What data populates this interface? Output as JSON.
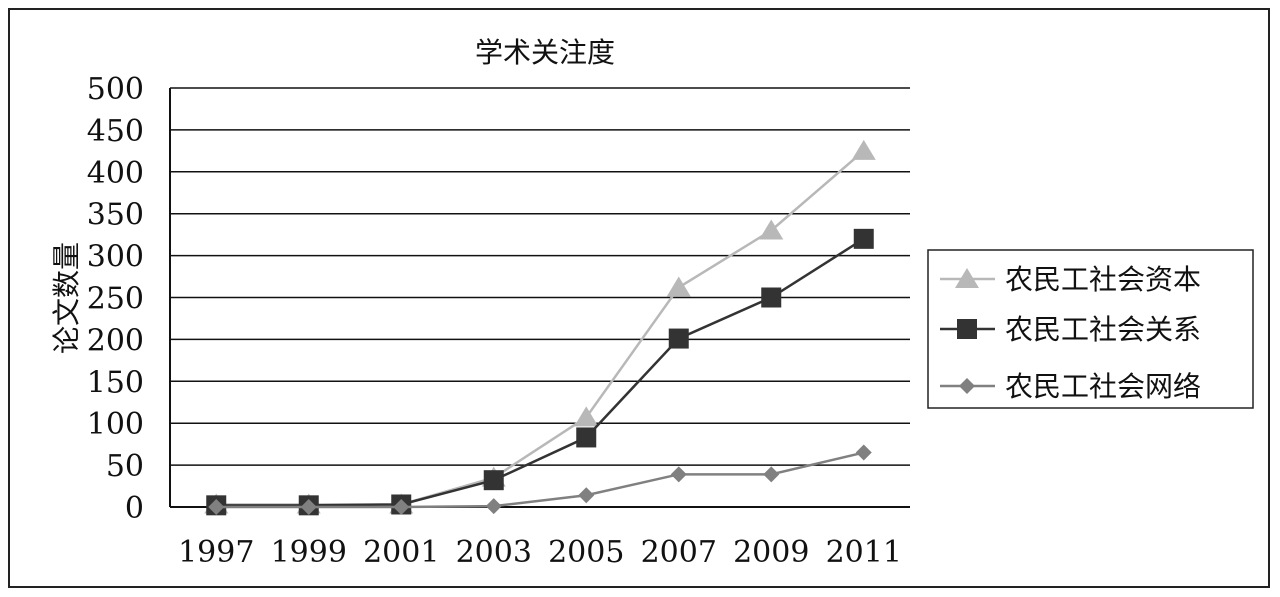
{
  "chart_data": {
    "type": "line",
    "title": "学术关注度",
    "ylabel": "论文数量",
    "xlabel": "",
    "categories": [
      "1997",
      "1999",
      "2001",
      "2003",
      "2005",
      "2007",
      "2009",
      "2011"
    ],
    "ylim": [
      0,
      500
    ],
    "yticks": [
      0,
      50,
      100,
      150,
      200,
      250,
      300,
      350,
      400,
      450,
      500
    ],
    "grid": true,
    "legend_position": "right",
    "series": [
      {
        "name": "农民工社会资本",
        "marker": "triangle",
        "color": "#b8b8b8",
        "values": [
          3,
          3,
          3,
          35,
          107,
          262,
          330,
          425
        ]
      },
      {
        "name": "农民工社会关系",
        "marker": "square",
        "color": "#333333",
        "values": [
          2,
          2,
          3,
          32,
          83,
          201,
          250,
          320
        ]
      },
      {
        "name": "农民工社会网络",
        "marker": "diamond",
        "color": "#808080",
        "values": [
          0,
          0,
          0,
          1,
          14,
          39,
          39,
          65
        ]
      }
    ]
  }
}
